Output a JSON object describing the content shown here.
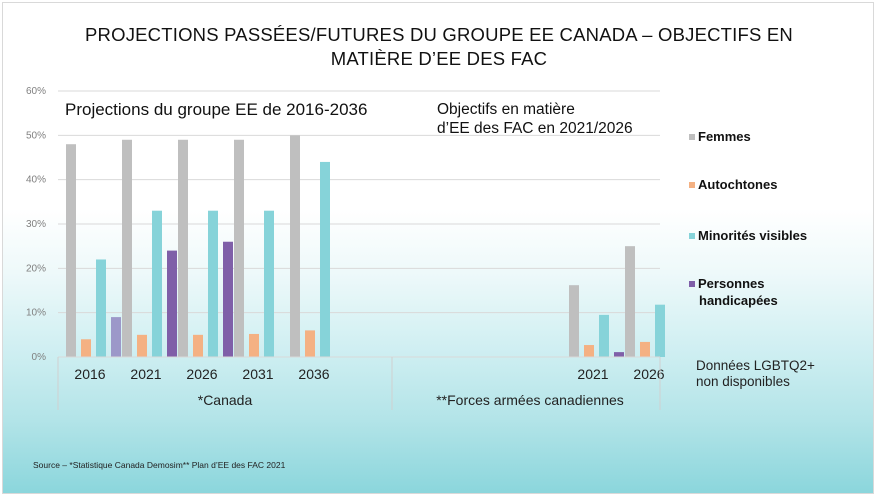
{
  "title_line1": "PROJECTIONS  PASSÉES/FUTURES  DU  GROUPE  EE  CANADA  – OBJECTIFS  EN",
  "title_line2": "MATIÈRE  D’EE DES FAC",
  "source": "Source – *Statistique Canada Demosim** Plan d’EE des FAC 2021",
  "chart_data": {
    "type": "bar",
    "title": "PROJECTIONS PASSÉES/FUTURES DU GROUPE EE CANADA – OBJECTIFS EN MATIÈRE D’EE DES FAC",
    "ylabel": "",
    "ylim": [
      0,
      60
    ],
    "yticks": [
      "0%",
      "10%",
      "20%",
      "30%",
      "40%",
      "50%",
      "60%"
    ],
    "grid": true,
    "legend_position": "right",
    "panels": [
      {
        "subtitle": "Projections du groupe EE de 2016-2036",
        "group_label": "*Canada",
        "categories": [
          "2016",
          "2021",
          "2026",
          "2031",
          "2036"
        ],
        "series": [
          {
            "name": "Femmes",
            "color": "#bfbfbf",
            "values": [
              48,
              49,
              49,
              49,
              50
            ]
          },
          {
            "name": "Autochtones",
            "color": "#f4b183",
            "values": [
              4,
              5,
              5,
              5.2,
              6
            ]
          },
          {
            "name": "Minorités visibles",
            "color": "#86d3d9",
            "values": [
              22,
              33,
              33,
              33,
              44
            ]
          },
          {
            "name": "Personnes handicapées",
            "color": "#7f5fa8",
            "values": [
              9,
              24,
              26,
              null,
              null
            ],
            "first_color": "#9c98c9"
          }
        ]
      },
      {
        "subtitle_line1": "Objectifs en matière",
        "subtitle_line2": "d’EE des FAC  en 2021/2026",
        "group_label": "**Forces armées canadiennes",
        "categories": [
          "2021",
          "2026"
        ],
        "series": [
          {
            "name": "Femmes",
            "color": "#bfbfbf",
            "values": [
              16.2,
              25
            ]
          },
          {
            "name": "Autochtones",
            "color": "#f4b183",
            "values": [
              2.7,
              3.4
            ]
          },
          {
            "name": "Minorités visibles",
            "color": "#86d3d9",
            "values": [
              9.5,
              11.8
            ]
          },
          {
            "name": "Personnes handicapées",
            "color": "#7f5fa8",
            "values": [
              1.1,
              null
            ]
          }
        ]
      }
    ],
    "legend": [
      {
        "label": "Femmes",
        "color": "#bfbfbf"
      },
      {
        "label": "Autochtones",
        "color": "#f4b183"
      },
      {
        "label": "Minorités visibles",
        "color": "#86d3d9"
      },
      {
        "label_line1": "Personnes",
        "label_line2": "handicapées",
        "color": "#7f5fa8"
      }
    ],
    "note_line1": "Données LGBTQ2+",
    "note_line2": "non disponibles"
  }
}
